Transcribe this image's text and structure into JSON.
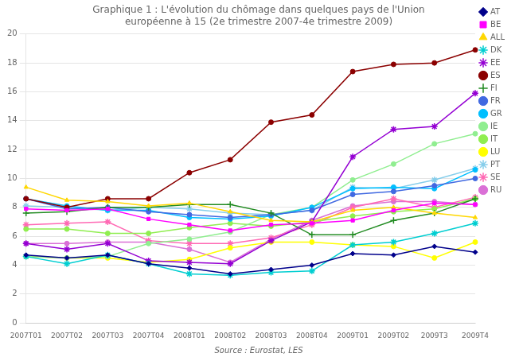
{
  "chart_data": {
    "type": "line",
    "title": [
      "Graphique 1 : L'évolution du chômage dans quelques pays de l'Union",
      "européenne à 15 (2e trimestre 2007-4e trimestre 2009)"
    ],
    "annotations": [
      "Source : Eurostat, LES"
    ],
    "categories": [
      "2007T01",
      "2007T02",
      "2007T03",
      "2007T04",
      "2008T01",
      "2008T02",
      "2008T03",
      "2008T04",
      "2009T01",
      "2009T02",
      "2009T3",
      "2009T4"
    ],
    "ylim": [
      0,
      20
    ],
    "yticks": [
      0,
      2,
      4,
      6,
      8,
      10,
      12,
      14,
      16,
      18,
      20
    ],
    "grid": "y",
    "legend": "right",
    "series": [
      {
        "name": "AT",
        "color": "#00008B",
        "marker": "diamond",
        "values": [
          4.7,
          4.5,
          4.7,
          4.1,
          3.8,
          3.4,
          3.7,
          4.0,
          4.8,
          4.7,
          5.3,
          4.9
        ]
      },
      {
        "name": "BE",
        "color": "#FF00FF",
        "marker": "square",
        "values": [
          7.9,
          7.8,
          7.9,
          7.2,
          6.8,
          6.4,
          6.8,
          6.9,
          7.1,
          7.8,
          8.3,
          8.2
        ]
      },
      {
        "name": "ALL",
        "color": "#FFD700",
        "marker": "triangle",
        "values": [
          9.4,
          8.5,
          8.4,
          8.1,
          8.3,
          7.7,
          7.1,
          7.0,
          7.8,
          8.0,
          7.6,
          7.3
        ]
      },
      {
        "name": "DK",
        "color": "#00CED1",
        "marker": "star",
        "values": [
          4.6,
          4.1,
          4.7,
          4.1,
          3.4,
          3.3,
          3.5,
          3.6,
          5.4,
          5.6,
          6.2,
          6.9
        ]
      },
      {
        "name": "EE",
        "color": "#9400D3",
        "marker": "star",
        "values": [
          5.5,
          5.1,
          5.5,
          4.3,
          4.2,
          4.1,
          5.7,
          7.0,
          11.5,
          13.4,
          13.6,
          15.9
        ]
      },
      {
        "name": "ES",
        "color": "#8B0000",
        "marker": "circle",
        "values": [
          8.6,
          8.0,
          8.6,
          8.6,
          10.4,
          11.3,
          13.9,
          14.4,
          17.4,
          17.9,
          18.0,
          18.9
        ]
      },
      {
        "name": "FI",
        "color": "#228B22",
        "marker": "plus",
        "values": [
          7.6,
          7.7,
          8.0,
          8.0,
          8.2,
          8.2,
          7.6,
          6.1,
          6.1,
          7.1,
          7.6,
          8.6
        ]
      },
      {
        "name": "FR",
        "color": "#4169E1",
        "marker": "circle",
        "values": [
          8.6,
          7.9,
          8.0,
          7.7,
          7.5,
          7.3,
          7.5,
          7.8,
          8.9,
          9.1,
          9.5,
          10.0
        ]
      },
      {
        "name": "GR",
        "color": "#00BFFF",
        "marker": "circle",
        "values": [
          8.6,
          8.1,
          7.8,
          7.8,
          7.3,
          7.2,
          7.4,
          8.0,
          9.3,
          9.4,
          9.3,
          10.6
        ]
      },
      {
        "name": "IE",
        "color": "#90EE90",
        "marker": "circle",
        "values": [
          4.6,
          4.5,
          4.6,
          5.5,
          5.8,
          6.3,
          7.5,
          8.0,
          9.9,
          11.0,
          12.4,
          13.1
        ]
      },
      {
        "name": "IT",
        "color": "#90EE50",
        "marker": "circle",
        "values": [
          6.5,
          6.5,
          6.2,
          6.2,
          6.6,
          6.9,
          6.7,
          7.0,
          7.4,
          7.7,
          7.9,
          8.6
        ]
      },
      {
        "name": "LU",
        "color": "#FFFF00",
        "marker": "circle",
        "values": [
          4.6,
          4.5,
          4.5,
          4.2,
          4.4,
          5.2,
          5.6,
          5.6,
          5.4,
          5.3,
          4.5,
          5.6
        ]
      },
      {
        "name": "PT",
        "color": "#87CEEB",
        "marker": "star",
        "values": [
          8.1,
          8.0,
          7.8,
          8.0,
          7.9,
          7.6,
          7.5,
          7.8,
          9.4,
          9.3,
          9.9,
          10.7
        ]
      },
      {
        "name": "SE",
        "color": "#FF69B4",
        "marker": "star",
        "values": [
          6.8,
          6.9,
          7.0,
          5.7,
          5.5,
          5.5,
          5.9,
          6.8,
          8.0,
          8.6,
          8.0,
          8.7
        ]
      },
      {
        "name": "RU",
        "color": "#DA70D6",
        "marker": "circle",
        "values": [
          5.5,
          5.5,
          5.6,
          5.6,
          5.1,
          4.2,
          5.8,
          7.1,
          8.1,
          8.4,
          8.4,
          8.2
        ]
      }
    ]
  }
}
